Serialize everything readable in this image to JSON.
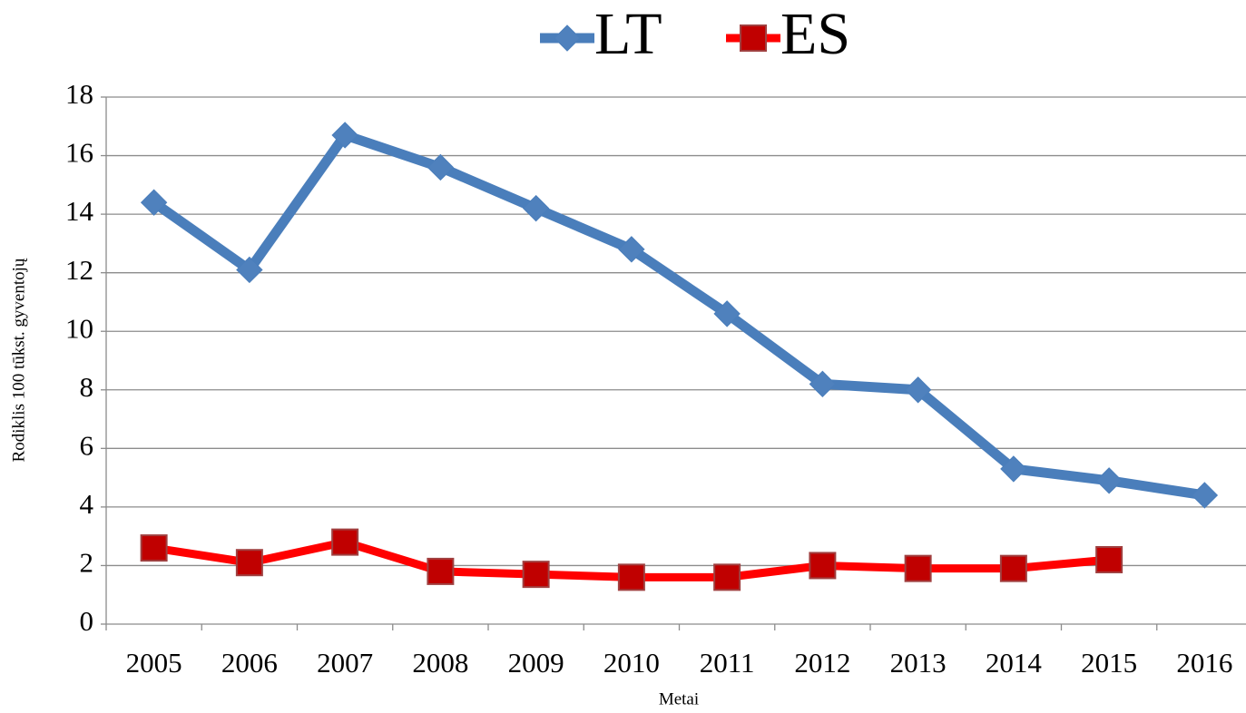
{
  "chart_data": {
    "type": "line",
    "x_label": "Metai",
    "y_label": "Rodiklis 100 tūkst. gyventojų",
    "categories": [
      "2005",
      "2006",
      "2007",
      "2008",
      "2009",
      "2010",
      "2011",
      "2012",
      "2013",
      "2014",
      "2015",
      "2016"
    ],
    "series": [
      {
        "name": "LT",
        "color": "#4a7ebb",
        "marker": "diamond",
        "values": [
          14.4,
          12.1,
          16.7,
          15.6,
          14.2,
          12.8,
          10.6,
          8.2,
          8.0,
          5.3,
          4.9,
          4.4
        ]
      },
      {
        "name": "ES",
        "color": "#ff0000",
        "marker": "square",
        "values": [
          2.6,
          2.1,
          2.8,
          1.8,
          1.7,
          1.6,
          1.6,
          2.0,
          1.9,
          1.9,
          2.2,
          null
        ]
      }
    ],
    "ylim": [
      0,
      18
    ],
    "yticks": [
      0,
      2,
      4,
      6,
      8,
      10,
      12,
      14,
      16,
      18
    ],
    "grid": true,
    "legend": "top"
  }
}
